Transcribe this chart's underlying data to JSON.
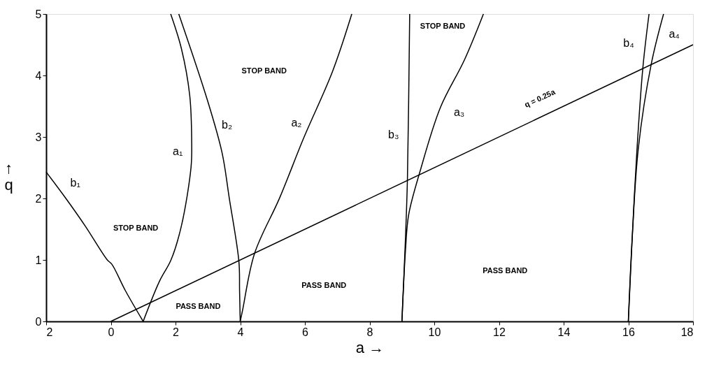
{
  "chart_data": {
    "type": "line",
    "xlabel": "a →",
    "ylabel": "↑\nq",
    "xlim": [
      -2,
      18
    ],
    "ylim": [
      0,
      5
    ],
    "xticks": [
      {
        "value": -2,
        "label": "2"
      },
      0,
      2,
      4,
      6,
      8,
      10,
      12,
      14,
      16,
      18
    ],
    "yticks": [
      0,
      1,
      2,
      3,
      4,
      5
    ],
    "grid": false,
    "legend": false,
    "marker": "none",
    "line_style": "solid",
    "series": [
      {
        "color": "#000000",
        "x": [
          -2.0,
          -1.39,
          -0.79,
          -0.11,
          0.03,
          0.45,
          1.0
        ],
        "values": [
          2.43,
          2.0,
          1.55,
          1.0,
          0.93,
          0.5,
          0.0
        ]
      },
      {
        "color": "#000000",
        "x": [
          1.0,
          1.51,
          1.86,
          2.18,
          2.48,
          2.5,
          2.44,
          2.18,
          1.85
        ],
        "values": [
          0.0,
          0.66,
          1.0,
          1.55,
          2.51,
          2.9,
          3.67,
          4.44,
          5.0
        ]
      },
      {
        "color": "#000000",
        "x": [
          4.0,
          3.98,
          3.96,
          3.66,
          3.44,
          2.99,
          2.1
        ],
        "values": [
          0.0,
          0.5,
          0.97,
          2.01,
          2.74,
          3.59,
          5.0
        ]
      },
      {
        "color": "#000000",
        "x": [
          4.0,
          4.08,
          4.44,
          5.22,
          5.96,
          6.85,
          7.45
        ],
        "values": [
          0.0,
          0.2,
          1.1,
          2.01,
          2.98,
          4.06,
          5.0
        ]
      },
      {
        "color": "#000000",
        "x": [
          9.0,
          9.11,
          9.17,
          9.24
        ],
        "values": [
          0.0,
          1.36,
          2.32,
          5.0
        ]
      },
      {
        "color": "#000000",
        "x": [
          9.0,
          9.11,
          9.21,
          9.56,
          10.19,
          10.93,
          11.52
        ],
        "values": [
          0.0,
          1.16,
          1.74,
          2.44,
          3.48,
          4.25,
          5.0
        ]
      },
      {
        "color": "#000000",
        "x": [
          16.0,
          16.12,
          16.27,
          16.45,
          16.64
        ],
        "values": [
          0.0,
          1.36,
          2.82,
          4.13,
          5.0
        ]
      },
      {
        "color": "#000000",
        "x": [
          16.0,
          16.12,
          16.31,
          16.71,
          17.09
        ],
        "values": [
          0.0,
          1.36,
          2.82,
          4.19,
          5.0
        ]
      },
      {
        "color": "#000000",
        "x": [
          0,
          18
        ],
        "values": [
          0,
          4.5
        ]
      }
    ],
    "annotations": [
      "b₁",
      "a₁",
      "b₂",
      "a₂",
      "b₃",
      "a₃",
      "b₄",
      "a₄",
      "q = 0.25a",
      "STOP BAND",
      "STOP BAND",
      "STOP BAND",
      "PASS BAND",
      "PASS BAND",
      "PASS BAND"
    ]
  }
}
